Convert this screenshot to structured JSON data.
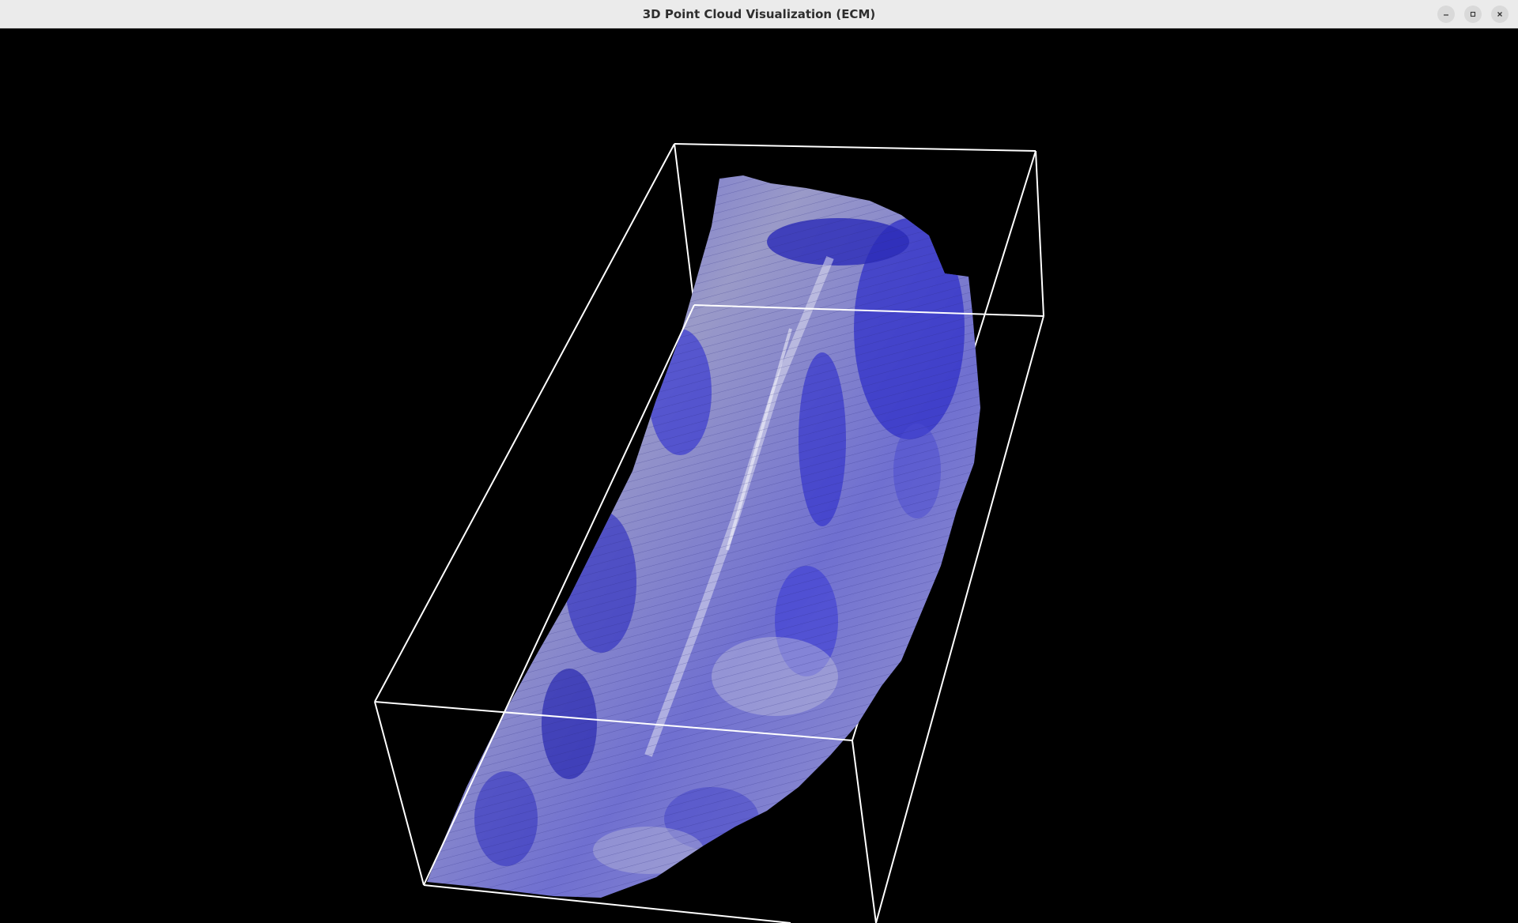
{
  "window": {
    "title": "3D Point Cloud Visualization (ECM)",
    "controls": {
      "minimize_icon": "minimize-icon",
      "maximize_icon": "maximize-icon",
      "close_icon": "close-icon"
    }
  },
  "viewport": {
    "background_color": "#000000",
    "bounding_box_color": "#ffffff",
    "point_cloud_colors": {
      "primary": "#3a3ad6",
      "secondary": "#a9a9cc",
      "highlight": "#d8d8e8"
    }
  }
}
